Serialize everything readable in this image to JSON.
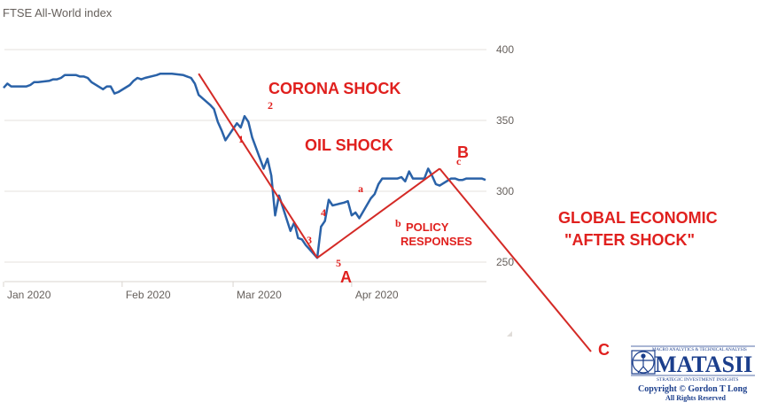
{
  "chart_data": {
    "type": "line",
    "title": "FTSE All-World index",
    "x_tick_labels": [
      "Jan 2020",
      "Feb 2020",
      "Mar 2020",
      "Apr 2020"
    ],
    "y_ticks": [
      250,
      300,
      350,
      400
    ],
    "ylim": [
      240,
      410
    ],
    "grid": "horizontal",
    "series": [
      {
        "color": "#2a62a8",
        "x": [
          "2020-01-01",
          "2020-01-02",
          "2020-01-03",
          "2020-01-06",
          "2020-01-07",
          "2020-01-08",
          "2020-01-09",
          "2020-01-10",
          "2020-01-13",
          "2020-01-14",
          "2020-01-15",
          "2020-01-16",
          "2020-01-17",
          "2020-01-20",
          "2020-01-21",
          "2020-01-22",
          "2020-01-23",
          "2020-01-24",
          "2020-01-27",
          "2020-01-28",
          "2020-01-29",
          "2020-01-30",
          "2020-01-31",
          "2020-02-03",
          "2020-02-04",
          "2020-02-05",
          "2020-02-06",
          "2020-02-07",
          "2020-02-10",
          "2020-02-11",
          "2020-02-12",
          "2020-02-13",
          "2020-02-14",
          "2020-02-17",
          "2020-02-18",
          "2020-02-19",
          "2020-02-20",
          "2020-02-21",
          "2020-02-24",
          "2020-02-25",
          "2020-02-26",
          "2020-02-27",
          "2020-02-28",
          "2020-03-02",
          "2020-03-03",
          "2020-03-04",
          "2020-03-05",
          "2020-03-06",
          "2020-03-09",
          "2020-03-10",
          "2020-03-11",
          "2020-03-12",
          "2020-03-13",
          "2020-03-16",
          "2020-03-17",
          "2020-03-18",
          "2020-03-19",
          "2020-03-20",
          "2020-03-23",
          "2020-03-24",
          "2020-03-25",
          "2020-03-26",
          "2020-03-27",
          "2020-03-30",
          "2020-03-31",
          "2020-04-01",
          "2020-04-02",
          "2020-04-03",
          "2020-04-06",
          "2020-04-07",
          "2020-04-08",
          "2020-04-09",
          "2020-04-13",
          "2020-04-14",
          "2020-04-15",
          "2020-04-16",
          "2020-04-17",
          "2020-04-20",
          "2020-04-21",
          "2020-04-22",
          "2020-04-23",
          "2020-04-24",
          "2020-04-27",
          "2020-04-28",
          "2020-04-29",
          "2020-04-30",
          "2020-05-01",
          "2020-05-04",
          "2020-05-05",
          "2020-05-06"
        ],
        "y": [
          373,
          376,
          374,
          374,
          374,
          375,
          377,
          377,
          378,
          379,
          379,
          380,
          382,
          382,
          381,
          381,
          380,
          377,
          372,
          374,
          374,
          369,
          370,
          375,
          378,
          380,
          379,
          380,
          382,
          383,
          383,
          383,
          383,
          382,
          381,
          380,
          376,
          368,
          361,
          358,
          349,
          343,
          336,
          348,
          345,
          353,
          349,
          338,
          316,
          323,
          311,
          283,
          297,
          272,
          278,
          267,
          266,
          262,
          253,
          275,
          279,
          294,
          290,
          292,
          293,
          283,
          285,
          281,
          295,
          298,
          305,
          309,
          309,
          310,
          307,
          314,
          309,
          309,
          316,
          311,
          305,
          304,
          309,
          309,
          308,
          308,
          309,
          309,
          309,
          308
        ]
      }
    ],
    "annotations": {
      "corona_shock": "CORONA SHOCK",
      "oil_shock": "OIL SHOCK",
      "global_line1": "GLOBAL ECONOMIC",
      "global_line2": "\"AFTER SHOCK\"",
      "policy_line1": "POLICY",
      "policy_line2": "RESPONSES",
      "wave_1": "1",
      "wave_2": "2",
      "wave_3": "3",
      "wave_4": "4",
      "wave_5": "5",
      "wave_a": "a",
      "wave_b": "b",
      "wave_c": "c",
      "point_A": "A",
      "point_B": "B",
      "point_C": "C"
    },
    "trend_lines": [
      {
        "from": [
          "2020-02-21",
          383
        ],
        "to": [
          "2020-03-23",
          253
        ]
      },
      {
        "from": [
          "2020-03-23",
          253
        ],
        "to": [
          "2020-04-24",
          316
        ]
      },
      {
        "from": [
          "2020-04-24",
          316
        ],
        "to": [
          "C"
        ]
      }
    ]
  },
  "logo": {
    "top_text": "MACRO ANALYTICS & TECHNICAL ANALYSIS",
    "name": "MATASII",
    "subtitle": "STRATEGIC INVESTMENT INSIGHTS",
    "copyright": "Copyright © Gordon T Long",
    "rights": "All Rights Reserved"
  },
  "colors": {
    "line": "#2a62a8",
    "annotation": "#e0201e",
    "grid": "#e6e1dc",
    "logo": "#1b3e8c"
  }
}
